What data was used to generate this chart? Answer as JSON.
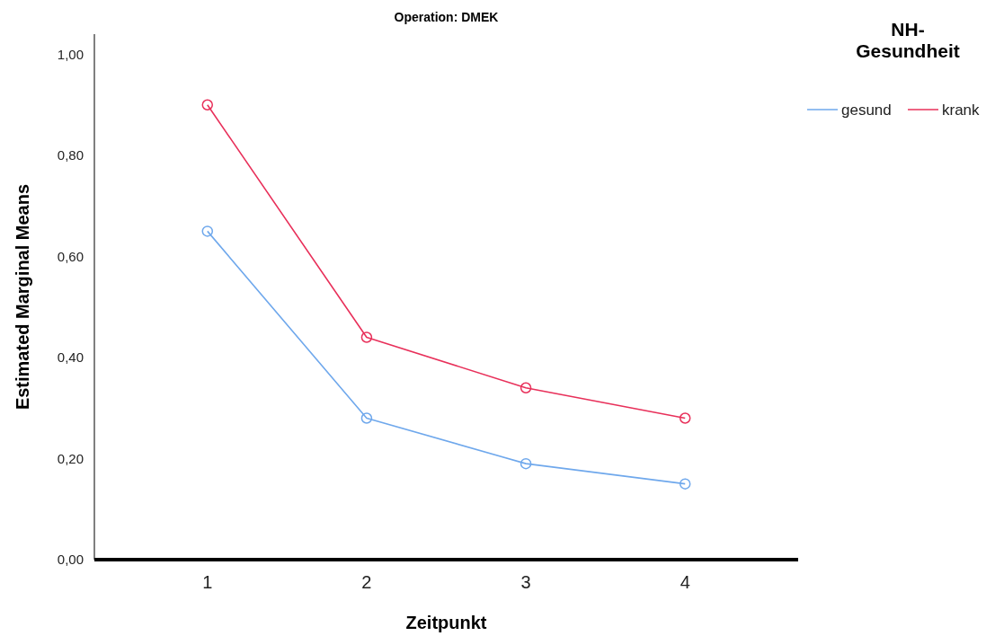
{
  "chart_data": {
    "type": "line",
    "title": "Operation: DMEK",
    "xlabel": "Zeitpunkt",
    "ylabel": "Estimated Marginal Means",
    "legend_title": "NH-Gesundheit",
    "categories": [
      "1",
      "2",
      "3",
      "4"
    ],
    "series": [
      {
        "name": "gesund",
        "color": "#6fa8ec",
        "values": [
          0.65,
          0.28,
          0.19,
          0.15
        ]
      },
      {
        "name": "krank",
        "color": "#e8305a",
        "values": [
          0.9,
          0.44,
          0.34,
          0.28
        ]
      }
    ],
    "ylim": [
      0,
      1.04
    ],
    "yticks": [
      {
        "value": 0,
        "label": "0,00"
      },
      {
        "value": 0.2,
        "label": "0,20"
      },
      {
        "value": 0.4,
        "label": "0,40"
      },
      {
        "value": 0.6,
        "label": "0,60"
      },
      {
        "value": 0.8,
        "label": "0,80"
      },
      {
        "value": 1,
        "label": "1,00"
      }
    ],
    "grid": false,
    "legend": "top right",
    "marker": "circle",
    "line_style": "solid"
  }
}
